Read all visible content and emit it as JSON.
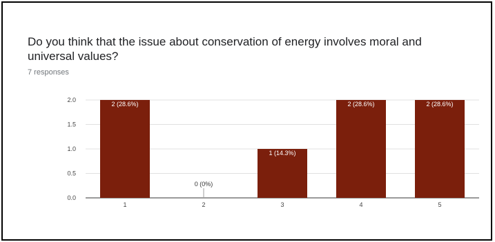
{
  "question": {
    "text": "Do you think that the issue about conservation of energy involves moral and universal values?",
    "responses": "7 responses"
  },
  "colors": {
    "bar": "#7b1f0c",
    "grid": "#e0e0e0",
    "axis": "#333333"
  },
  "chart_data": {
    "type": "bar",
    "categories": [
      "1",
      "2",
      "3",
      "4",
      "5"
    ],
    "values": [
      2,
      0,
      1,
      2,
      2
    ],
    "data_labels": [
      "2 (28.6%)",
      "0 (0%)",
      "1 (14.3%)",
      "2 (28.6%)",
      "2 (28.6%)"
    ],
    "yticks": [
      "0.0",
      "0.5",
      "1.0",
      "1.5",
      "2.0"
    ],
    "ylim": [
      0,
      2
    ],
    "title": "",
    "xlabel": "",
    "ylabel": "",
    "grid": true,
    "legend": "none"
  }
}
